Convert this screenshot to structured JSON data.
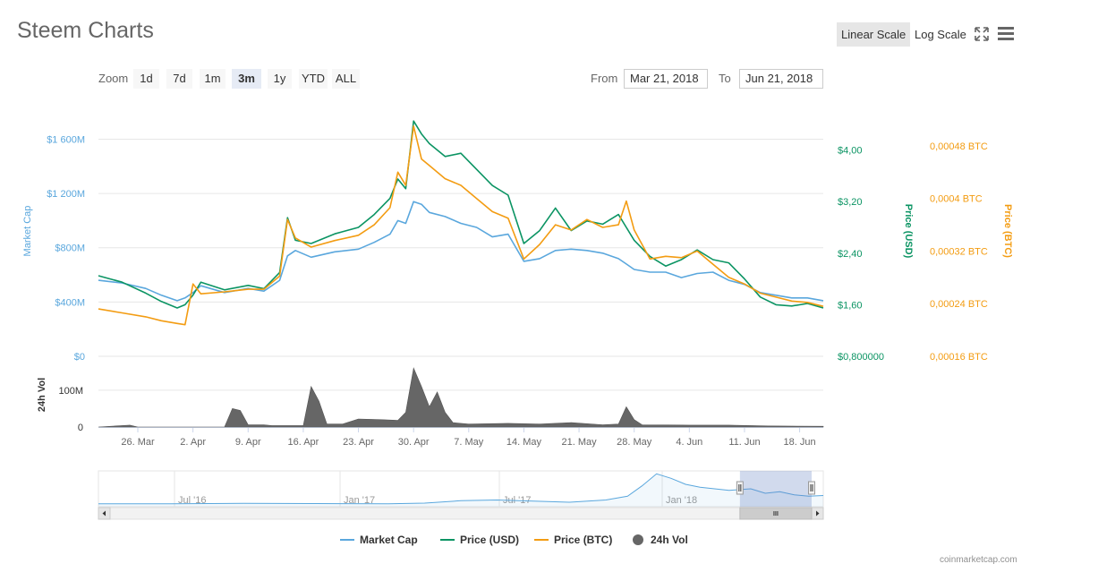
{
  "title": "Steem Charts",
  "scale": {
    "linear_label": "Linear Scale",
    "log_label": "Log Scale",
    "selected": "Linear Scale"
  },
  "toolbar": {
    "fullscreen_icon": "fullscreen-icon",
    "menu_icon": "hamburger-menu-icon"
  },
  "zoom": {
    "label": "Zoom",
    "buttons": [
      "1d",
      "7d",
      "1m",
      "3m",
      "1y",
      "YTD",
      "ALL"
    ],
    "active": "3m"
  },
  "range": {
    "from_label": "From",
    "from_value": "Mar 21, 2018",
    "to_label": "To",
    "to_value": "Jun 21, 2018"
  },
  "colors": {
    "market_cap": "#5aa7dd",
    "price_usd": "#0b9463",
    "price_btc": "#f39c12",
    "volume": "#666666"
  },
  "chart_data": {
    "type": "line",
    "axes": {
      "market_cap": {
        "label": "Market Cap",
        "ticks": [
          "$0",
          "$400M",
          "$800M",
          "$1 200M",
          "$1 600M"
        ],
        "range": [
          0,
          1900
        ]
      },
      "price_usd": {
        "label": "Price (USD)",
        "ticks": [
          "$0,800000",
          "$1,60",
          "$2,40",
          "$3,20",
          "$4,00"
        ],
        "range": [
          0.8,
          4.8
        ]
      },
      "price_btc": {
        "label": "Price (BTC)",
        "ticks": [
          "0,00016 BTC",
          "0,00024 BTC",
          "0,00032 BTC",
          "0,0004 BTC",
          "0,00048 BTC"
        ],
        "range": [
          0.00016,
          0.000552
        ]
      },
      "volume": {
        "label": "24h Vol",
        "ticks": [
          "0",
          "100M"
        ],
        "range": [
          0,
          180
        ]
      }
    },
    "x_ticks": [
      "26. Mar",
      "2. Apr",
      "9. Apr",
      "16. Apr",
      "23. Apr",
      "30. Apr",
      "7. May",
      "14. May",
      "21. May",
      "28. May",
      "4. Jun",
      "11. Jun",
      "18. Jun"
    ],
    "x_tick_days": [
      5,
      12,
      19,
      26,
      33,
      40,
      47,
      54,
      61,
      68,
      75,
      82,
      89
    ],
    "x_range_days": [
      0,
      92
    ],
    "series": [
      {
        "name": "Market Cap",
        "unit": "$M",
        "points": [
          [
            0,
            560
          ],
          [
            3,
            540
          ],
          [
            6,
            500
          ],
          [
            8,
            450
          ],
          [
            10,
            410
          ],
          [
            11,
            430
          ],
          [
            12,
            470
          ],
          [
            13,
            520
          ],
          [
            16,
            470
          ],
          [
            19,
            500
          ],
          [
            21,
            480
          ],
          [
            23,
            560
          ],
          [
            24,
            740
          ],
          [
            25,
            780
          ],
          [
            27,
            730
          ],
          [
            30,
            770
          ],
          [
            33,
            790
          ],
          [
            35,
            840
          ],
          [
            37,
            900
          ],
          [
            38,
            1000
          ],
          [
            39,
            980
          ],
          [
            40,
            1140
          ],
          [
            41,
            1120
          ],
          [
            42,
            1060
          ],
          [
            44,
            1030
          ],
          [
            46,
            980
          ],
          [
            48,
            950
          ],
          [
            50,
            880
          ],
          [
            52,
            900
          ],
          [
            54,
            700
          ],
          [
            56,
            720
          ],
          [
            58,
            780
          ],
          [
            60,
            790
          ],
          [
            62,
            780
          ],
          [
            64,
            760
          ],
          [
            66,
            720
          ],
          [
            67,
            680
          ],
          [
            68,
            640
          ],
          [
            70,
            620
          ],
          [
            72,
            620
          ],
          [
            74,
            580
          ],
          [
            76,
            610
          ],
          [
            78,
            620
          ],
          [
            80,
            560
          ],
          [
            82,
            530
          ],
          [
            84,
            470
          ],
          [
            86,
            450
          ],
          [
            88,
            430
          ],
          [
            90,
            430
          ],
          [
            92,
            410
          ]
        ]
      },
      {
        "name": "Price (USD)",
        "unit": "USD",
        "points": [
          [
            0,
            2.05
          ],
          [
            3,
            1.95
          ],
          [
            6,
            1.78
          ],
          [
            8,
            1.65
          ],
          [
            10,
            1.55
          ],
          [
            11,
            1.6
          ],
          [
            12,
            1.75
          ],
          [
            13,
            1.95
          ],
          [
            16,
            1.83
          ],
          [
            19,
            1.9
          ],
          [
            21,
            1.85
          ],
          [
            23,
            2.1
          ],
          [
            24,
            2.95
          ],
          [
            25,
            2.6
          ],
          [
            27,
            2.55
          ],
          [
            30,
            2.7
          ],
          [
            33,
            2.8
          ],
          [
            35,
            3.0
          ],
          [
            37,
            3.25
          ],
          [
            38,
            3.55
          ],
          [
            39,
            3.4
          ],
          [
            40,
            4.45
          ],
          [
            41,
            4.25
          ],
          [
            42,
            4.1
          ],
          [
            44,
            3.9
          ],
          [
            46,
            3.95
          ],
          [
            48,
            3.7
          ],
          [
            50,
            3.45
          ],
          [
            52,
            3.3
          ],
          [
            54,
            2.55
          ],
          [
            56,
            2.75
          ],
          [
            58,
            3.1
          ],
          [
            60,
            2.75
          ],
          [
            62,
            2.9
          ],
          [
            64,
            2.85
          ],
          [
            66,
            3.0
          ],
          [
            67,
            2.8
          ],
          [
            68,
            2.6
          ],
          [
            70,
            2.35
          ],
          [
            72,
            2.2
          ],
          [
            74,
            2.3
          ],
          [
            76,
            2.45
          ],
          [
            78,
            2.3
          ],
          [
            80,
            2.25
          ],
          [
            82,
            2.0
          ],
          [
            84,
            1.72
          ],
          [
            86,
            1.6
          ],
          [
            88,
            1.58
          ],
          [
            90,
            1.62
          ],
          [
            92,
            1.55
          ]
        ]
      },
      {
        "name": "Price (BTC)",
        "unit": "BTC",
        "points": [
          [
            0,
            0.000232
          ],
          [
            3,
            0.000226
          ],
          [
            6,
            0.00022
          ],
          [
            8,
            0.000214
          ],
          [
            10,
            0.00021
          ],
          [
            11,
            0.000208
          ],
          [
            12,
            0.00027
          ],
          [
            13,
            0.000255
          ],
          [
            16,
            0.000258
          ],
          [
            19,
            0.000262
          ],
          [
            21,
            0.000262
          ],
          [
            23,
            0.000282
          ],
          [
            24,
            0.000368
          ],
          [
            25,
            0.00034
          ],
          [
            27,
            0.000326
          ],
          [
            30,
            0.000336
          ],
          [
            33,
            0.000344
          ],
          [
            35,
            0.00036
          ],
          [
            37,
            0.000386
          ],
          [
            38,
            0.00044
          ],
          [
            39,
            0.00042
          ],
          [
            40,
            0.00051
          ],
          [
            41,
            0.00046
          ],
          [
            42,
            0.00045
          ],
          [
            44,
            0.00043
          ],
          [
            46,
            0.00042
          ],
          [
            48,
            0.0004
          ],
          [
            50,
            0.00038
          ],
          [
            52,
            0.00037
          ],
          [
            54,
            0.000308
          ],
          [
            56,
            0.00033
          ],
          [
            58,
            0.00036
          ],
          [
            60,
            0.000352
          ],
          [
            62,
            0.000368
          ],
          [
            64,
            0.000356
          ],
          [
            66,
            0.00036
          ],
          [
            67,
            0.000396
          ],
          [
            68,
            0.000352
          ],
          [
            70,
            0.000308
          ],
          [
            72,
            0.000312
          ],
          [
            74,
            0.00031
          ],
          [
            76,
            0.00032
          ],
          [
            78,
            0.0003
          ],
          [
            80,
            0.00028
          ],
          [
            82,
            0.00027
          ],
          [
            84,
            0.000256
          ],
          [
            86,
            0.00025
          ],
          [
            88,
            0.000244
          ],
          [
            90,
            0.000242
          ],
          [
            92,
            0.000236
          ]
        ]
      },
      {
        "name": "24h Vol",
        "unit": "$M",
        "points": [
          [
            0,
            0
          ],
          [
            4,
            5
          ],
          [
            5,
            0
          ],
          [
            16,
            0
          ],
          [
            17,
            50
          ],
          [
            18,
            45
          ],
          [
            19,
            6
          ],
          [
            21,
            6
          ],
          [
            22,
            4
          ],
          [
            26,
            4
          ],
          [
            27,
            110
          ],
          [
            28,
            70
          ],
          [
            29,
            8
          ],
          [
            31,
            8
          ],
          [
            33,
            22
          ],
          [
            36,
            20
          ],
          [
            38,
            18
          ],
          [
            39,
            40
          ],
          [
            40,
            160
          ],
          [
            41,
            110
          ],
          [
            42,
            55
          ],
          [
            43,
            95
          ],
          [
            44,
            40
          ],
          [
            45,
            12
          ],
          [
            47,
            8
          ],
          [
            52,
            10
          ],
          [
            56,
            8
          ],
          [
            60,
            12
          ],
          [
            64,
            6
          ],
          [
            66,
            8
          ],
          [
            67,
            55
          ],
          [
            68,
            20
          ],
          [
            69,
            6
          ],
          [
            75,
            5
          ],
          [
            80,
            5
          ],
          [
            85,
            3
          ],
          [
            92,
            2
          ]
        ]
      }
    ],
    "legend": {
      "placement": "bottom",
      "items": [
        "Market Cap",
        "Price (USD)",
        "Price (BTC)",
        "24h Vol"
      ]
    }
  },
  "navigator": {
    "labels": [
      "Jul '16",
      "Jan '17",
      "Jul '17",
      "Jan '18"
    ],
    "series": [
      [
        0,
        20
      ],
      [
        10,
        20
      ],
      [
        20,
        22
      ],
      [
        30,
        21
      ],
      [
        40,
        20
      ],
      [
        45,
        24
      ],
      [
        50,
        40
      ],
      [
        55,
        45
      ],
      [
        60,
        38
      ],
      [
        65,
        30
      ],
      [
        70,
        45
      ],
      [
        73,
        70
      ],
      [
        75,
        140
      ],
      [
        77,
        220
      ],
      [
        79,
        190
      ],
      [
        81,
        150
      ],
      [
        83,
        130
      ],
      [
        85,
        120
      ],
      [
        87,
        110
      ],
      [
        90,
        120
      ],
      [
        92,
        90
      ],
      [
        94,
        100
      ],
      [
        96,
        80
      ],
      [
        98,
        70
      ],
      [
        100,
        75
      ]
    ],
    "selection": [
      88.5,
      100
    ]
  },
  "credit": "coinmarketcap.com"
}
